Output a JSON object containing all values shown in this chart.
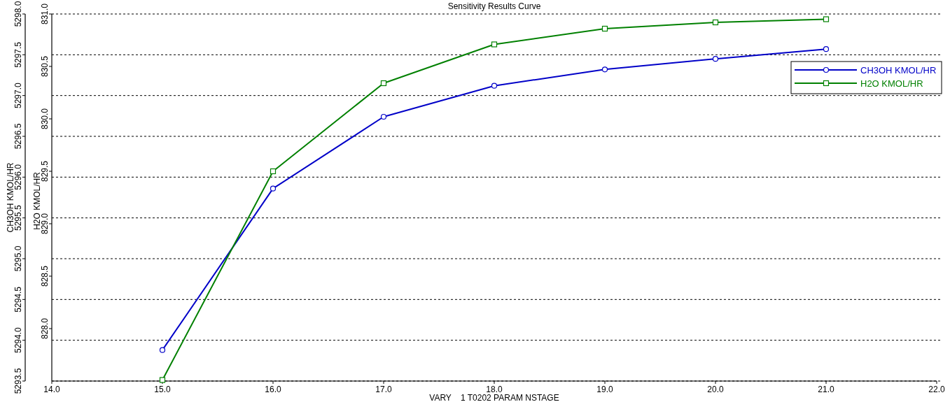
{
  "chart_data": {
    "type": "line",
    "title": "Sensitivity Results Curve",
    "xlabel": "VARY    1 T0202 PARAM NSTAGE",
    "ylabel": "CH3OH KMOL/HR",
    "y2label": "H2O KMOL/HR",
    "x": [
      15,
      16,
      17,
      18,
      19,
      20,
      21
    ],
    "series": [
      {
        "name": "CH3OH KMOL/HR",
        "color": "#0000c8",
        "marker": "circle",
        "values": [
          5293.88,
          5295.86,
          5296.74,
          5297.12,
          5297.32,
          5297.45,
          5297.57
        ]
      },
      {
        "name": "H2O KMOL/HR",
        "color": "#008000",
        "marker": "square",
        "axis": "y2",
        "values": [
          827.51,
          829.5,
          830.34,
          830.71,
          830.86,
          830.92,
          830.95
        ]
      }
    ],
    "xlim": [
      14,
      22
    ],
    "xticks": [
      {
        "value": 14,
        "label": "14.0"
      },
      {
        "value": 15,
        "label": "15.0"
      },
      {
        "value": 16,
        "label": "16.0"
      },
      {
        "value": 17,
        "label": "17.0"
      },
      {
        "value": 18,
        "label": "18.0"
      },
      {
        "value": 19,
        "label": "19.0"
      },
      {
        "value": 20,
        "label": "20.0"
      },
      {
        "value": 21,
        "label": "21.0"
      },
      {
        "value": 22,
        "label": "22.0"
      }
    ],
    "ylim": [
      5293.5,
      5298
    ],
    "yticks": [
      5293.5,
      {
        "value": 5294,
        "label": "5294.0"
      },
      5294.5,
      {
        "value": 5295,
        "label": "5295.0"
      },
      5295.5,
      {
        "value": 5296,
        "label": "5296.0"
      },
      5296.5,
      {
        "value": 5297,
        "label": "5297.0"
      },
      5297.5,
      {
        "value": 5298,
        "label": "5298.0"
      }
    ],
    "y2lim": [
      827.5,
      831
    ],
    "y2ticks": [
      {
        "value": 828,
        "label": "828.0"
      },
      828.5,
      {
        "value": 829,
        "label": "829.0"
      },
      829.5,
      {
        "value": 830,
        "label": "830.0"
      },
      830.5,
      {
        "value": 831,
        "label": "831.0"
      }
    ],
    "grid": "y",
    "legend": "top right",
    "line_style": "solid"
  }
}
